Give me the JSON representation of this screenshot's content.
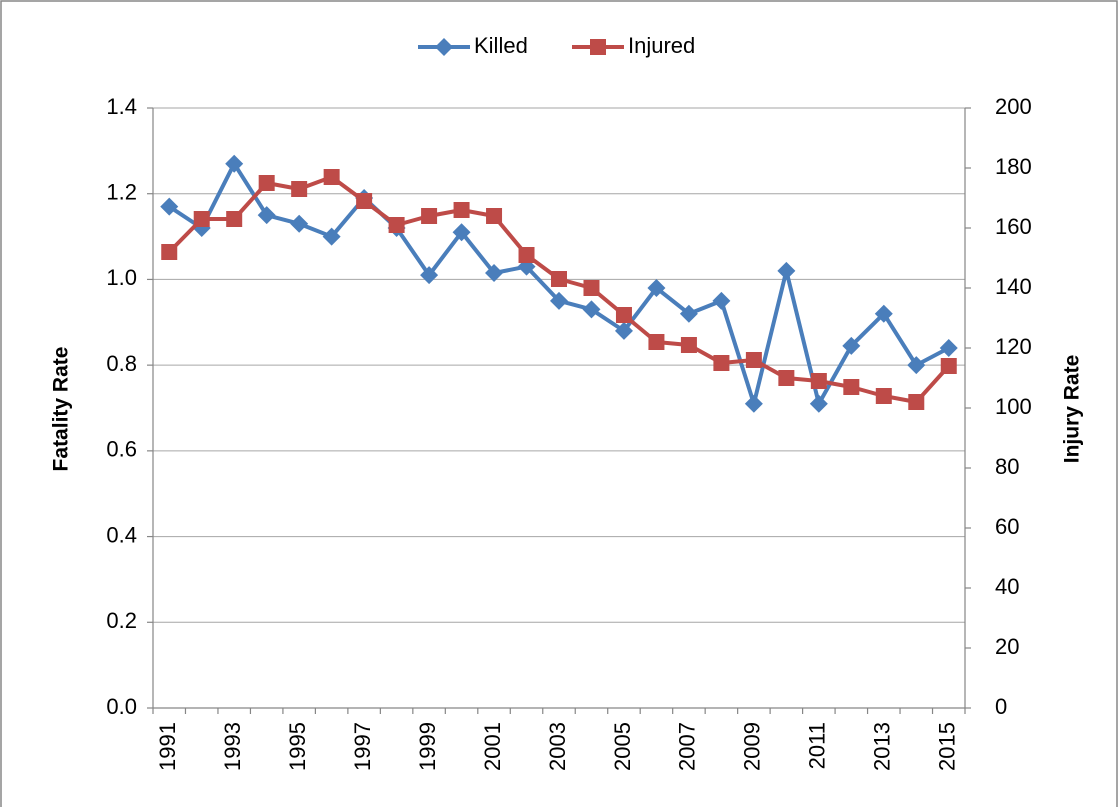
{
  "chart_data": {
    "type": "line",
    "categories": [
      "1991",
      null,
      "1993",
      null,
      "1995",
      null,
      "1997",
      null,
      "1999",
      null,
      "2001",
      null,
      "2003",
      null,
      "2005",
      null,
      "2007",
      null,
      "2009",
      null,
      "2011",
      null,
      "2013",
      null,
      "2015"
    ],
    "series": [
      {
        "name": "Killed",
        "color": "#4a7ebb",
        "marker": "diamond",
        "axis": "y",
        "values": [
          1.17,
          1.12,
          1.27,
          1.15,
          1.13,
          1.1,
          1.19,
          1.12,
          1.01,
          1.11,
          1.015,
          1.03,
          0.95,
          0.93,
          0.88,
          0.98,
          0.92,
          0.95,
          0.71,
          1.02,
          0.71,
          0.845,
          0.92,
          0.8,
          0.84
        ]
      },
      {
        "name": "Injured",
        "color": "#be4b48",
        "marker": "square",
        "axis": "y2",
        "values": [
          152,
          163,
          163,
          175,
          173,
          177,
          169,
          161,
          164,
          166,
          164,
          151,
          143,
          140,
          131,
          122,
          121,
          115,
          116,
          110,
          109,
          107,
          104,
          102,
          114
        ]
      }
    ],
    "ylabel": "Fatality Rate",
    "y2label": "Injury Rate",
    "ylim": [
      0,
      1.4
    ],
    "yticks": [
      {
        "value": 0,
        "label": "0.0"
      },
      0.2,
      0.4,
      0.6,
      0.8,
      {
        "value": 1,
        "label": "1.0"
      },
      1.2,
      1.4
    ],
    "y2lim": [
      0,
      200
    ],
    "y2ticks": [
      0,
      20,
      40,
      60,
      80,
      100,
      120,
      140,
      160,
      180,
      200
    ],
    "grid": true,
    "legend": "top"
  }
}
